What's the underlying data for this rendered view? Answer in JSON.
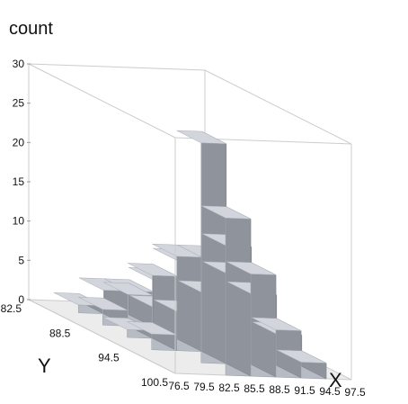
{
  "chart_data": {
    "type": "bar3d",
    "title": "",
    "zlabel": "count",
    "xlabel": "X",
    "ylabel": "Y",
    "z_ticks": [
      "0",
      "5",
      "10",
      "15",
      "20",
      "25",
      "30"
    ],
    "x_ticks": [
      "76.5",
      "79.5",
      "82.5",
      "85.5",
      "88.5",
      "91.5",
      "94.5",
      "97.5"
    ],
    "y_ticks": [
      "82.5",
      "88.5",
      "94.5",
      "100.5"
    ],
    "zlim": [
      0,
      30
    ],
    "x_bins": [
      76.5,
      79.5,
      82.5,
      85.5,
      88.5,
      91.5,
      94.5,
      97.5
    ],
    "y_bins": [
      82.5,
      85.5,
      88.5,
      91.5,
      94.5,
      97.5,
      100.5
    ],
    "counts": [
      [
        0,
        0,
        0,
        0,
        0,
        0,
        1
      ],
      [
        1,
        2,
        1,
        2,
        0,
        0,
        0
      ],
      [
        3,
        4,
        8,
        12,
        28,
        20,
        18
      ],
      [
        3,
        6,
        10,
        12,
        15,
        13,
        11
      ],
      [
        1,
        2,
        6,
        10,
        9,
        6,
        5
      ],
      [
        0,
        0,
        0,
        0,
        4,
        2,
        1
      ],
      [
        0,
        0,
        0,
        0,
        0,
        0,
        0
      ]
    ],
    "colors": {
      "top": "#d2d5dc",
      "side_light": "#b7bbc4",
      "side_dark": "#8e939c",
      "frame": "#cccccc"
    }
  }
}
